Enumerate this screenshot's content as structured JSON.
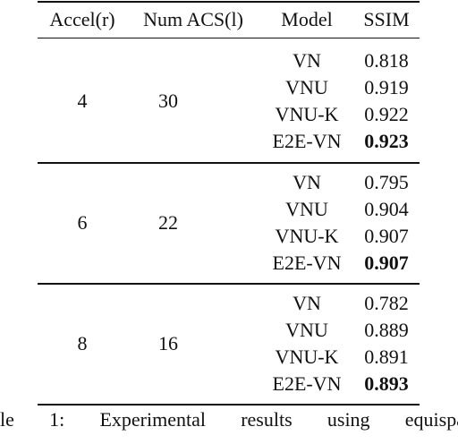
{
  "table": {
    "header": [
      "Accel(r)",
      "Num ACS(l)",
      "Model",
      "SSIM"
    ],
    "groups": [
      {
        "accel": 4,
        "acs": 30,
        "rows": [
          [
            "VN",
            0.818
          ],
          [
            "VNU",
            0.919
          ],
          [
            "VNU-K",
            0.922
          ],
          [
            "E2E-VN",
            0.923
          ]
        ]
      },
      {
        "accel": 6,
        "acs": 22,
        "rows": [
          [
            "VN",
            0.795
          ],
          [
            "VNU",
            0.904
          ],
          [
            "VNU-K",
            0.907
          ],
          [
            "E2E-VN",
            0.907
          ]
        ]
      },
      {
        "accel": 8,
        "acs": 16,
        "rows": [
          [
            "VN",
            0.782
          ],
          [
            "VNU",
            0.889
          ],
          [
            "VNU-K",
            0.891
          ],
          [
            "E2E-VN",
            0.893
          ]
        ]
      }
    ]
  },
  "caption": "le 1: Experimental results using equispa"
}
